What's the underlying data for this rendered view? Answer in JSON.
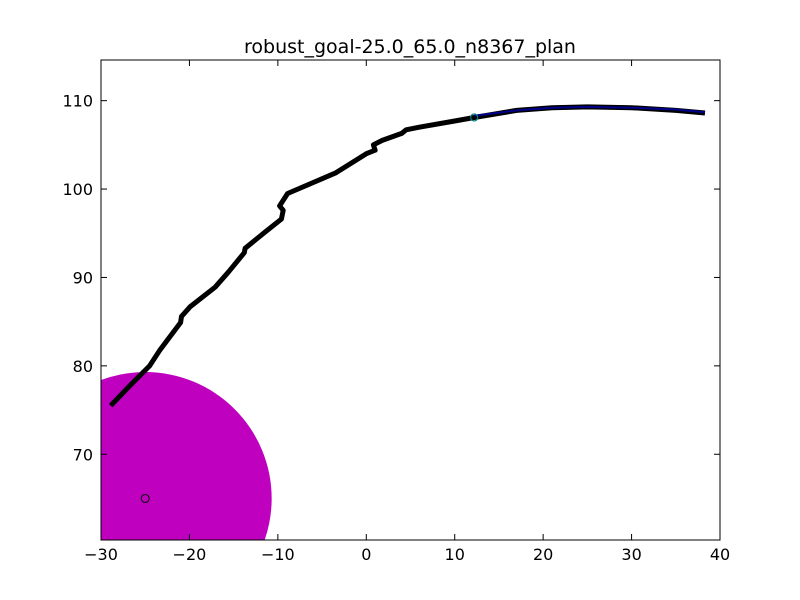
{
  "chart_data": {
    "type": "line",
    "title": "robust_goal-25.0_65.0_n8367_plan",
    "xlabel": "",
    "ylabel": "",
    "xlim": [
      -30,
      40
    ],
    "ylim": [
      60.3,
      114.6
    ],
    "x_ticks": [
      -30,
      -20,
      -10,
      0,
      10,
      20,
      30,
      40
    ],
    "y_ticks": [
      70,
      80,
      90,
      100,
      110
    ],
    "x_tick_labels": [
      "−30",
      "−20",
      "−10",
      "0",
      "10",
      "20",
      "30",
      "40"
    ],
    "y_tick_labels": [
      "70",
      "80",
      "90",
      "100",
      "110"
    ],
    "grid": false,
    "legend": "none",
    "colors": {
      "path": "#000000",
      "plan": "#00008b",
      "goal_region": "#bf00bf",
      "start_marker": "#008080"
    },
    "goal_region": {
      "center": [
        -25,
        65
      ],
      "radius": 14.3
    },
    "goal_marker": [
      -25,
      65
    ],
    "start_marker": [
      12.2,
      108.1
    ],
    "series": [
      {
        "role": "trajectory",
        "points": [
          [
            -28.9,
            75.5
          ],
          [
            -26.7,
            77.8
          ],
          [
            -24.5,
            80.0
          ],
          [
            -23.4,
            81.7
          ],
          [
            -21.0,
            84.9
          ],
          [
            -20.9,
            85.6
          ],
          [
            -19.9,
            86.7
          ],
          [
            -17.1,
            88.9
          ],
          [
            -15.6,
            90.6
          ],
          [
            -13.8,
            92.8
          ],
          [
            -13.7,
            93.3
          ],
          [
            -11.5,
            95.1
          ],
          [
            -9.6,
            96.6
          ],
          [
            -9.4,
            97.6
          ],
          [
            -9.8,
            98.1
          ],
          [
            -8.9,
            99.5
          ],
          [
            -3.5,
            101.8
          ],
          [
            0.0,
            104.0
          ],
          [
            1.0,
            104.4
          ],
          [
            0.8,
            105.0
          ],
          [
            1.8,
            105.5
          ],
          [
            4.0,
            106.3
          ],
          [
            4.5,
            106.7
          ],
          [
            6.0,
            107.0
          ],
          [
            10.0,
            107.7
          ],
          [
            12.2,
            108.1
          ],
          [
            17.0,
            108.9
          ],
          [
            21.0,
            109.2
          ],
          [
            25.0,
            109.3
          ],
          [
            30.0,
            109.2
          ],
          [
            35.0,
            108.9
          ],
          [
            38.3,
            108.6
          ]
        ]
      },
      {
        "role": "plan",
        "points": [
          [
            12.2,
            108.3
          ],
          [
            17.0,
            108.9
          ],
          [
            21.0,
            109.2
          ],
          [
            25.0,
            109.3
          ],
          [
            30.0,
            109.2
          ],
          [
            35.0,
            109.0
          ],
          [
            38.3,
            108.7
          ]
        ]
      }
    ]
  }
}
